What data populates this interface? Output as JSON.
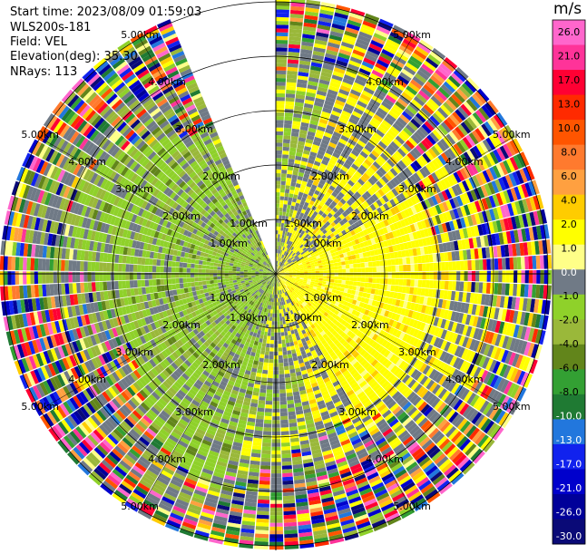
{
  "header": {
    "start_time": "Start time: 2023/08/09 01:59:03",
    "instrument": "WLS200s-181",
    "field": "Field: VEL",
    "elevation": "Elevation(deg): 35.30",
    "nrays": "NRays: 113"
  },
  "chart_data": {
    "type": "ppi-radial-velocity",
    "field": "VEL",
    "units": "m/s",
    "nrays": 113,
    "elevation_deg": 35.3,
    "range_rings_km": [
      1.0,
      2.0,
      3.0,
      4.0,
      5.0
    ],
    "ring_labels": [
      "1.00km",
      "2.00km",
      "3.00km",
      "4.00km",
      "5.00km"
    ],
    "max_range_km": 5.05,
    "missing_sector_deg": [
      337,
      360
    ],
    "colorbar": {
      "ticks": [
        "26.0",
        "21.0",
        "17.0",
        "13.0",
        "10.0",
        "8.0",
        "6.0",
        "4.0",
        "2.0",
        "1.0",
        "0.0",
        "-1.0",
        "-2.0",
        "-4.0",
        "-6.0",
        "-8.0",
        "-10.0",
        "-13.0",
        "-17.0",
        "-21.0",
        "-26.0",
        "-30.0"
      ],
      "colors": [
        "#ff66cc",
        "#ff3399",
        "#ff0033",
        "#ff2a00",
        "#ff5500",
        "#ff7a2e",
        "#ffa040",
        "#ffcc00",
        "#ffff00",
        "#ffff88",
        "#707a86",
        "#8fd12a",
        "#9ab83a",
        "#62851b",
        "#33a033",
        "#1f7a33",
        "#2277dd",
        "#1122ee",
        "#0000cc",
        "#000099",
        "#0a0a77"
      ]
    },
    "zones": [
      {
        "sector": "east (15 to 165 deg)",
        "dominant": "yellow 2.0 to 4.0 m/s, grey near 0"
      },
      {
        "sector": "west (190 to 335 deg)",
        "dominant": "green -1.0 to -4.0 m/s, grey near 0"
      },
      {
        "sector": "outer ranges",
        "dominant": "noise, all colors"
      }
    ]
  }
}
